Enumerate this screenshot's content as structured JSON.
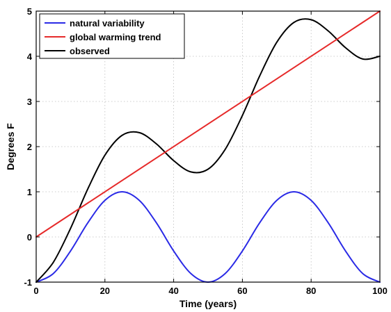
{
  "chart_data": {
    "type": "line",
    "title": "",
    "xlabel": "Time (years)",
    "ylabel": "Degrees F",
    "xlim": [
      0,
      100
    ],
    "ylim": [
      -1,
      5
    ],
    "xticks": [
      0,
      20,
      40,
      60,
      80,
      100
    ],
    "yticks": [
      -1,
      0,
      1,
      2,
      3,
      4,
      5
    ],
    "grid": true,
    "grid_style": "dotted",
    "legend_position": "top-left",
    "series": [
      {
        "name": "natural variability",
        "color": "#2a2ae6",
        "x": [
          0,
          5,
          10,
          15,
          20,
          25,
          30,
          35,
          40,
          45,
          50,
          55,
          60,
          65,
          70,
          75,
          80,
          85,
          90,
          95,
          100
        ],
        "y": [
          -1.0,
          -0.81,
          -0.31,
          0.31,
          0.81,
          1.0,
          0.81,
          0.31,
          -0.31,
          -0.81,
          -1.0,
          -0.81,
          -0.31,
          0.31,
          0.81,
          1.0,
          0.81,
          0.31,
          -0.31,
          -0.81,
          -1.0
        ]
      },
      {
        "name": "global warming trend",
        "color": "#e62a2a",
        "x": [
          0,
          100
        ],
        "y": [
          0.0,
          5.0
        ]
      },
      {
        "name": "observed",
        "color": "#000000",
        "x": [
          0,
          5,
          10,
          15,
          20,
          25,
          30,
          35,
          40,
          45,
          50,
          55,
          60,
          65,
          70,
          75,
          80,
          85,
          90,
          95,
          100
        ],
        "y": [
          -1.0,
          -0.56,
          0.19,
          1.06,
          1.81,
          2.25,
          2.31,
          2.06,
          1.69,
          1.44,
          1.5,
          1.94,
          2.69,
          3.56,
          4.31,
          4.75,
          4.81,
          4.56,
          4.19,
          3.94,
          4.0
        ]
      }
    ]
  }
}
